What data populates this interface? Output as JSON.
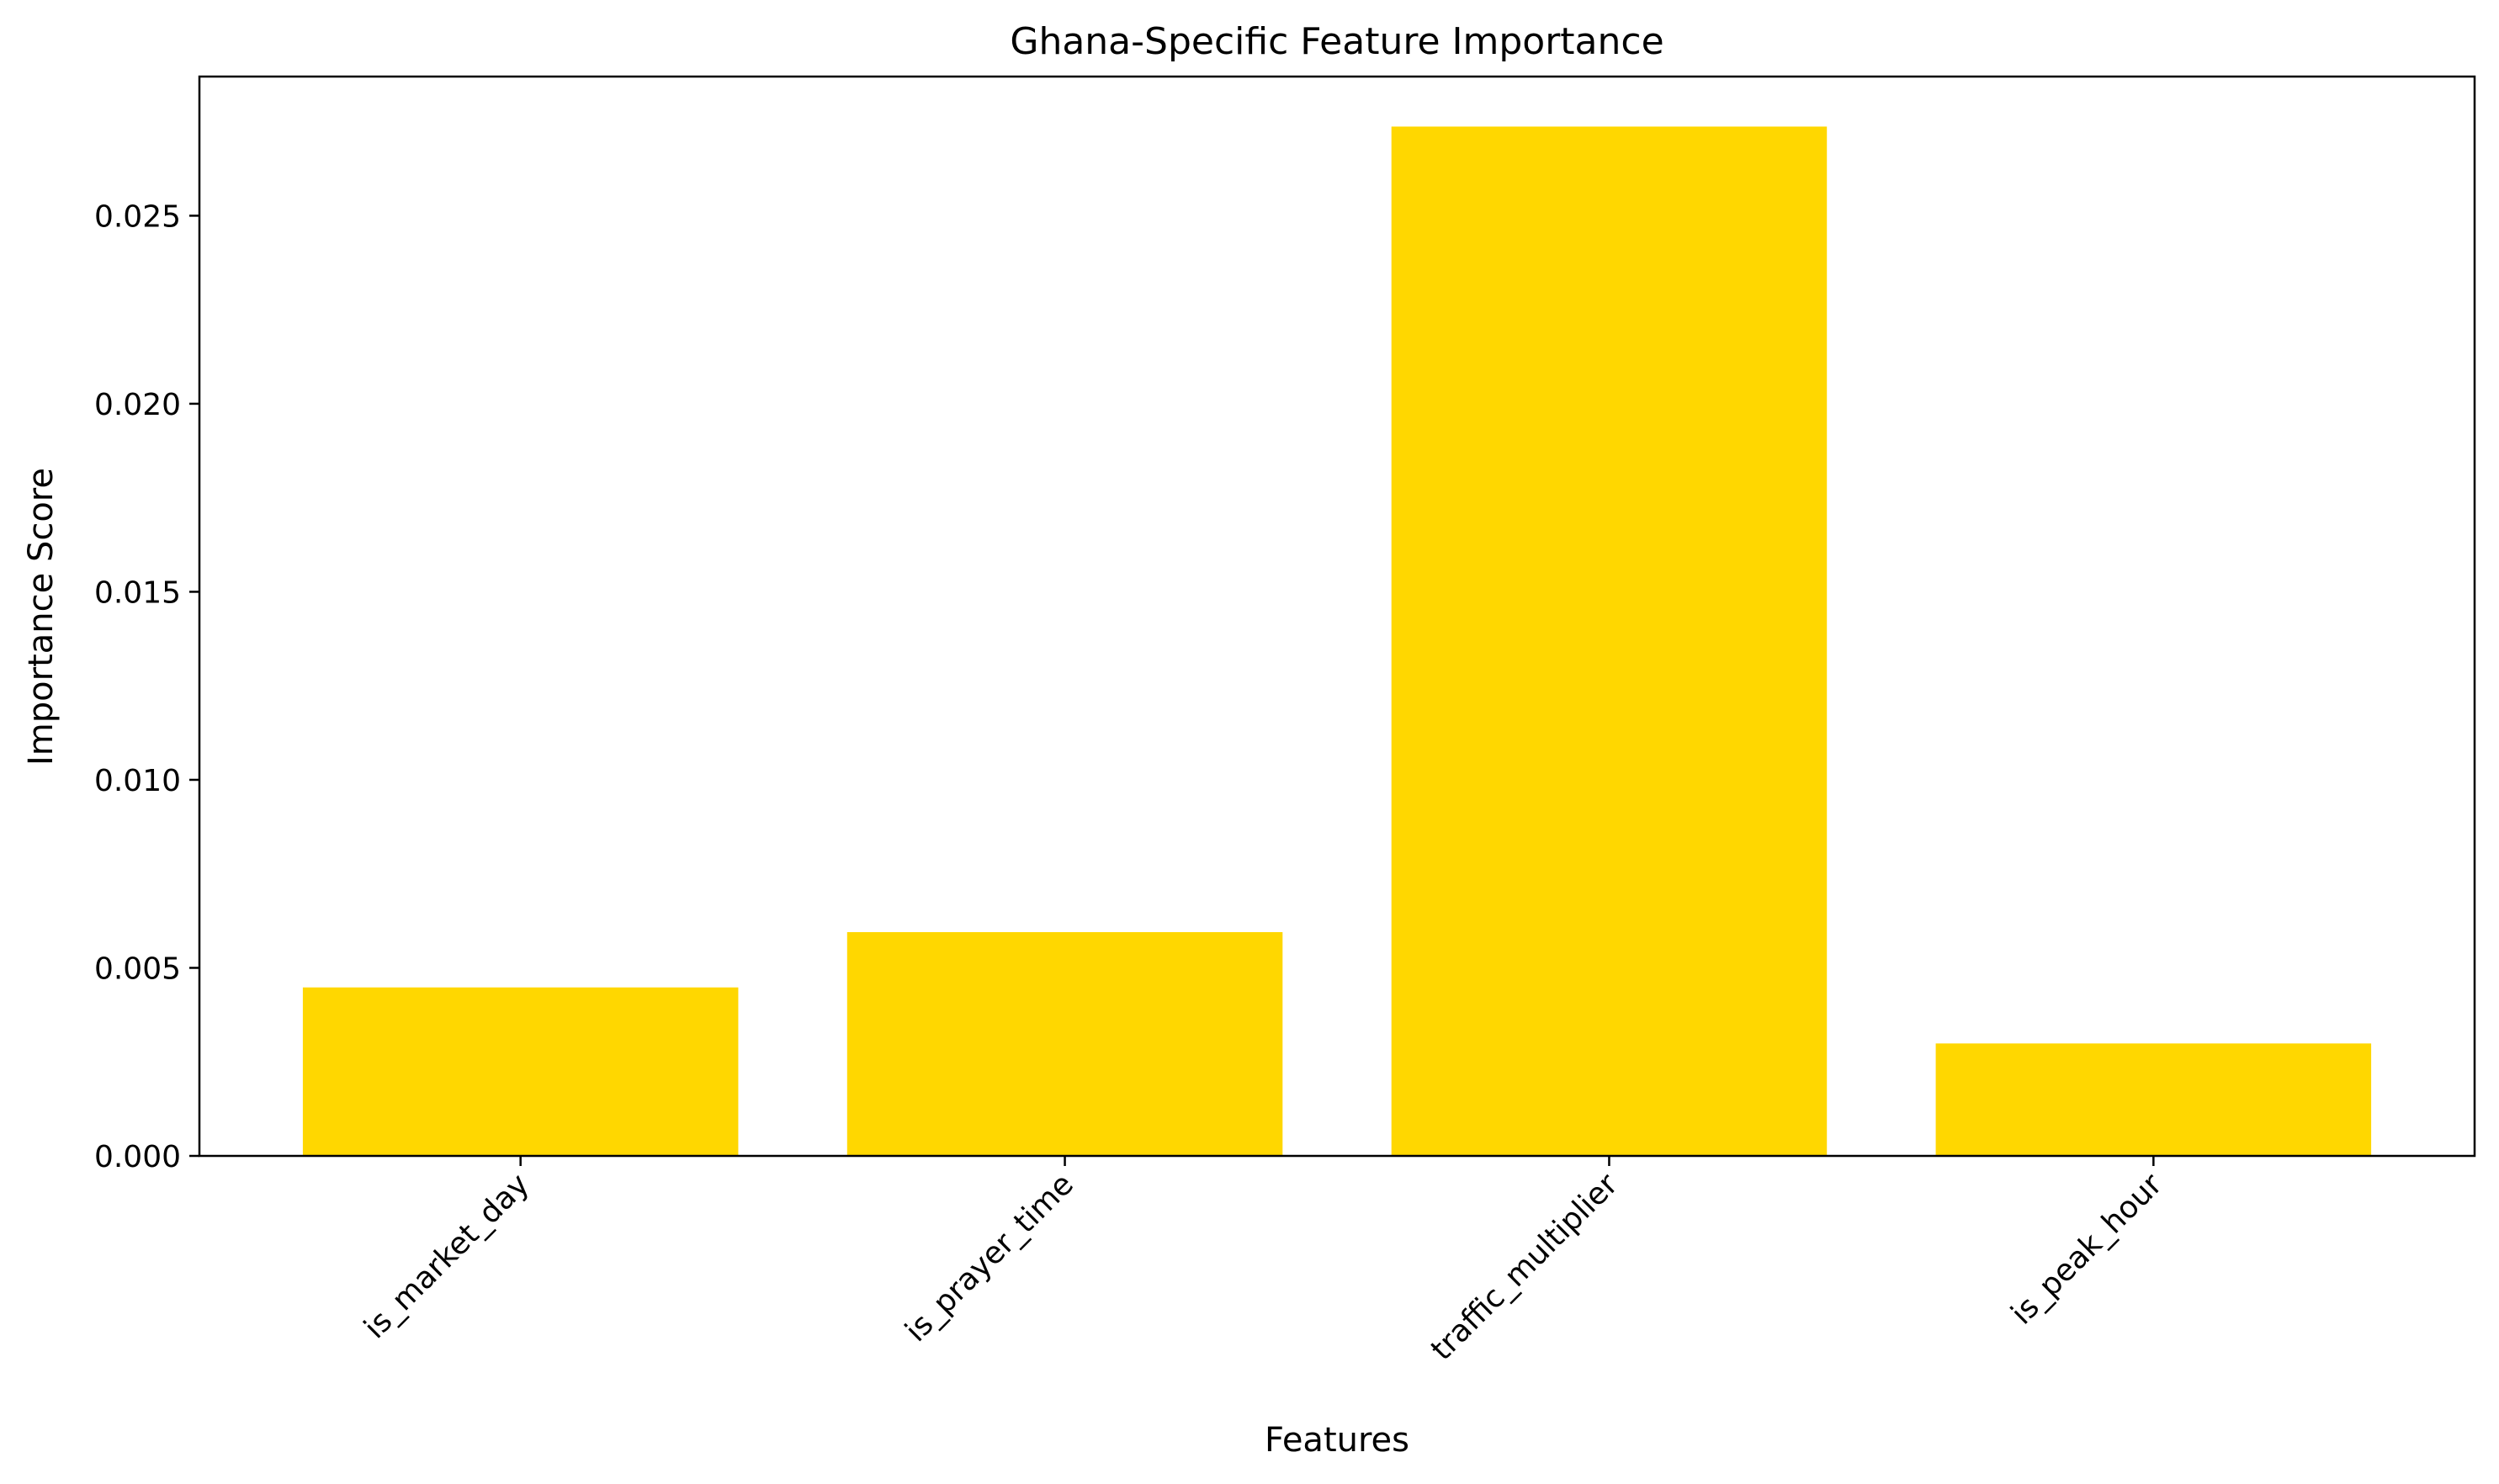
{
  "chart_data": {
    "type": "bar",
    "title": "Ghana-Specific Feature Importance",
    "xlabel": "Features",
    "ylabel": "Importance Score",
    "categories": [
      "is_market_day",
      "is_prayer_time",
      "traffic_multiplier",
      "is_peak_hour"
    ],
    "values": [
      0.00448,
      0.00595,
      0.02737,
      0.00299
    ],
    "ylim": [
      0,
      0.0287
    ],
    "yticks": [
      0.0,
      0.005,
      0.01,
      0.015,
      0.02,
      0.025
    ],
    "ytick_labels": [
      "0.000",
      "0.005",
      "0.010",
      "0.015",
      "0.020",
      "0.025"
    ],
    "x_tick_rotation_deg": 45,
    "grid": false,
    "legend": "none",
    "bar_color": "#FFD700"
  }
}
